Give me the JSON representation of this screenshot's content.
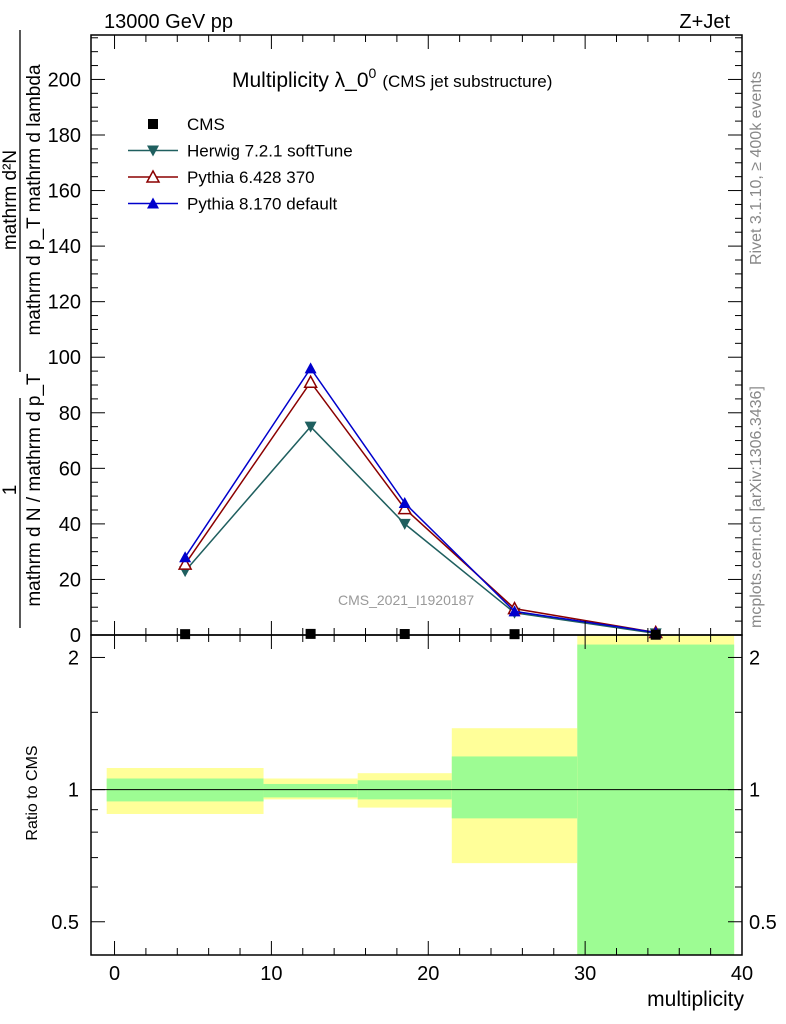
{
  "header": {
    "energy_label": "13000 GeV pp",
    "process_label": "Z+Jet",
    "title_main": "Multiplicity λ_0",
    "title_sup": "0",
    "title_sub": "(CMS jet substructure)",
    "analysis_id": "CMS_2021_I1920187",
    "rivet_label": "Rivet 3.1.10, ≥ 400k events",
    "mcplots_label": "mcplots.cern.ch [arXiv:1306.3436]"
  },
  "axes": {
    "ylabel_top_numerator": "mathrm d²N",
    "ylabel_top_denominator": "mathrm d p_T mathrm d lambda",
    "ylabel_top_prefix_numerator": "1",
    "ylabel_top_prefix_denominator": "mathrm d N / mathrm d p_T",
    "ylabel_ratio": "Ratio to CMS",
    "xlabel": "multiplicity"
  },
  "legend": [
    {
      "name": "CMS",
      "marker": "square",
      "color": "#000000"
    },
    {
      "name": "Herwig 7.2.1 softTune",
      "marker": "triangle-down",
      "color": "#1f5f5f"
    },
    {
      "name": "Pythia 6.428 370",
      "marker": "triangle-up-open",
      "color": "#8b0000"
    },
    {
      "name": "Pythia 8.170 default",
      "marker": "triangle-up",
      "color": "#0000cc"
    }
  ],
  "chart_data": [
    {
      "type": "line",
      "panel": "main",
      "xlim": [
        -1.5,
        40
      ],
      "ylim": [
        0,
        216
      ],
      "x_ticks": [
        0,
        10,
        20,
        30,
        40
      ],
      "y_ticks": [
        0,
        20,
        40,
        60,
        80,
        100,
        120,
        140,
        160,
        180,
        200
      ],
      "y_tick_labels": [
        "0",
        "20",
        "40",
        "60",
        "80",
        "100",
        "120",
        "140",
        "160",
        "180",
        "200"
      ],
      "series": [
        {
          "name": "CMS",
          "x": [
            4.5,
            12.5,
            18.5,
            25.5,
            34.5
          ],
          "y": [
            0.3,
            0.4,
            0.35,
            0.3,
            0.1
          ]
        },
        {
          "name": "Herwig 7.2.1 softTune",
          "x": [
            4.5,
            12.5,
            18.5,
            25.5,
            34.5
          ],
          "y": [
            23,
            75,
            40,
            8,
            0.6
          ]
        },
        {
          "name": "Pythia 6.428 370",
          "x": [
            4.5,
            12.5,
            18.5,
            25.5,
            34.5
          ],
          "y": [
            25.5,
            91,
            45.5,
            9.5,
            0.9
          ]
        },
        {
          "name": "Pythia 8.170 default",
          "x": [
            4.5,
            12.5,
            18.5,
            25.5,
            34.5
          ],
          "y": [
            28,
            96,
            47.5,
            8.5,
            0.9
          ]
        }
      ]
    },
    {
      "type": "area",
      "panel": "ratio",
      "xlim": [
        -1.5,
        40
      ],
      "ylim": [
        0.42,
        2.25
      ],
      "log_y": true,
      "x_ticks": [
        0,
        10,
        20,
        30,
        40
      ],
      "x_tick_labels": [
        "0",
        "10",
        "20",
        "30",
        "40"
      ],
      "y_ticks": [
        0.5,
        1,
        2
      ],
      "y_tick_labels": [
        "0.5",
        "1",
        "2"
      ],
      "reference": 1,
      "bins": [
        {
          "x_low": -0.5,
          "x_high": 9.5,
          "stat_low": 0.94,
          "stat_high": 1.06,
          "total_low": 0.88,
          "total_high": 1.12
        },
        {
          "x_low": 9.5,
          "x_high": 15.5,
          "stat_low": 0.96,
          "stat_high": 1.03,
          "total_low": 0.95,
          "total_high": 1.06
        },
        {
          "x_low": 15.5,
          "x_high": 21.5,
          "stat_low": 0.95,
          "stat_high": 1.05,
          "total_low": 0.91,
          "total_high": 1.09
        },
        {
          "x_low": 21.5,
          "x_high": 29.5,
          "stat_low": 0.86,
          "stat_high": 1.19,
          "total_low": 0.68,
          "total_high": 1.38
        },
        {
          "x_low": 29.5,
          "x_high": 39.5,
          "stat_low": 0.42,
          "stat_high": 2.14,
          "total_low": 0.42,
          "total_high": 2.25
        }
      ],
      "colors": {
        "stat": "#9dfc93",
        "total": "#ffff99"
      }
    }
  ]
}
